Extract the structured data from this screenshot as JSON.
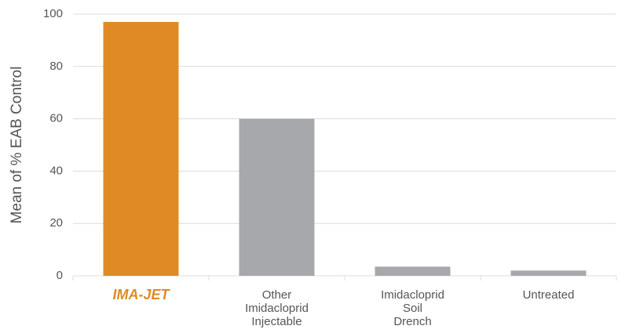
{
  "chart_data": {
    "type": "bar",
    "y_label": "Mean of % EAB Control",
    "categories": [
      "IMA-JET",
      "Other\nImidacloprid\nInjectable",
      "Imidacloprid\nSoil\nDrench",
      "Untreated"
    ],
    "values": [
      97,
      60,
      3.5,
      2
    ],
    "colors": [
      "#e08a26",
      "#a7a8ab",
      "#a7a8ab",
      "#a7a8ab"
    ],
    "ylim": [
      0,
      100
    ],
    "yticks": [
      0,
      20,
      40,
      60,
      80,
      100
    ],
    "grid": true
  }
}
